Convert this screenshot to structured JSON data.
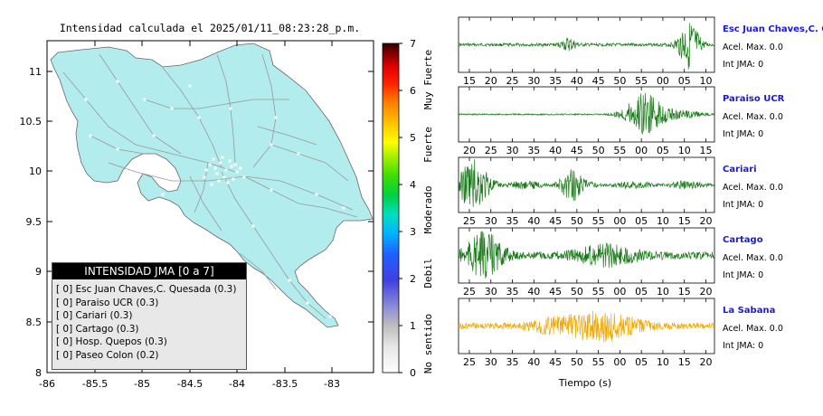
{
  "map": {
    "title": "Intensidad calculada el 2025/01/11_08:23:28_p.m.",
    "x_ticks": [
      "-86",
      "-85.5",
      "-85",
      "-84.5",
      "-84",
      "-83.5",
      "-83"
    ],
    "y_ticks": [
      "11",
      "10.5",
      "10",
      "9.5",
      "9",
      "8.5",
      "8"
    ],
    "land_color": "#b3ecec",
    "road_color": "#999999"
  },
  "colorbar": {
    "ticks": [
      "0",
      "1",
      "2",
      "3",
      "4",
      "5",
      "6",
      "7"
    ],
    "labels": [
      "No sentido",
      "Debil",
      "Moderado",
      "Fuerte",
      "Muy Fuerte"
    ]
  },
  "legend": {
    "title": "INTENSIDAD JMA [0 a 7]",
    "items": [
      "[ 0]  Esc Juan Chaves,C. Quesada (0.3)",
      "[ 0]  Paraiso UCR (0.3)",
      "[ 0]  Cariari (0.3)",
      "[ 0]  Cartago (0.3)",
      "[ 0]  Hosp. Quepos (0.3)",
      "[ 0]  Paseo Colon (0.2)"
    ]
  },
  "stations": [
    {
      "name": "Esc Juan Chaves,C. Qu",
      "acel": "Acel. Max. 0.0",
      "int": "Int JMA: 0",
      "color": "#1a7a1a",
      "ticks": [
        "15",
        "20",
        "25",
        "30",
        "35",
        "40",
        "45",
        "50",
        "55",
        "00",
        "05",
        "10"
      ]
    },
    {
      "name": "Paraiso UCR",
      "acel": "Acel. Max. 0.0",
      "int": "Int JMA: 0",
      "color": "#1a7a1a",
      "ticks": [
        "20",
        "25",
        "30",
        "35",
        "40",
        "45",
        "50",
        "55",
        "00",
        "05",
        "10",
        "15"
      ]
    },
    {
      "name": "Cariari",
      "acel": "Acel. Max. 0.0",
      "int": "Int JMA: 0",
      "color": "#1a7a1a",
      "ticks": [
        "25",
        "30",
        "35",
        "40",
        "45",
        "50",
        "55",
        "00",
        "05",
        "10",
        "15",
        "20"
      ]
    },
    {
      "name": "Cartago",
      "acel": "Acel. Max. 0.0",
      "int": "Int JMA: 0",
      "color": "#1a7a1a",
      "ticks": [
        "25",
        "30",
        "35",
        "40",
        "45",
        "50",
        "55",
        "00",
        "05",
        "10",
        "15",
        "20"
      ]
    },
    {
      "name": "La Sabana",
      "acel": "Acel. Max. 0.0",
      "int": "Int JMA: 0",
      "color": "#f0a800",
      "ticks": [
        "25",
        "30",
        "35",
        "40",
        "45",
        "50",
        "55",
        "00",
        "05",
        "10",
        "15",
        "20"
      ]
    }
  ],
  "time_axis_label": "Tiempo (s)"
}
